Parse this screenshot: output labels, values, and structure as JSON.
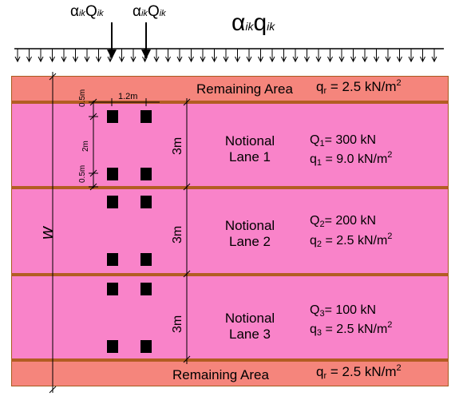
{
  "loads": {
    "axle_1": {
      "main": "α",
      "main_sub": "ik",
      "var": "Q",
      "var_sub": "ik"
    },
    "axle_2": {
      "main": "α",
      "main_sub": "ik",
      "var": "Q",
      "var_sub": "ik"
    },
    "udl": {
      "main": "α",
      "main_sub": "ik",
      "var": "q",
      "var_sub": "ik"
    }
  },
  "remaining_top": {
    "title": "Remaining Area",
    "q_sym": "q",
    "q_sub": "r",
    "q_val": "= 2.5 kN/m",
    "q_exp": "2"
  },
  "remaining_bottom": {
    "title": "Remaining Area",
    "q_sym": "q",
    "q_sub": "r",
    "q_val": "= 2.5 kN/m",
    "q_exp": "2"
  },
  "lanes": [
    {
      "line1": "Notional",
      "line2": "Lane 1",
      "Q_sym": "Q",
      "Q_sub": "1",
      "Q_val": "= 300 kN",
      "q_sym": "q",
      "q_sub": "1",
      "q_val": "= 9.0 kN/m",
      "q_exp": "2",
      "width": "3m"
    },
    {
      "line1": "Notional",
      "line2": "Lane 2",
      "Q_sym": "Q",
      "Q_sub": "2",
      "Q_val": "= 200 kN",
      "q_sym": "q",
      "q_sub": "2",
      "q_val": "= 2.5 kN/m",
      "q_exp": "2",
      "width": "3m"
    },
    {
      "line1": "Notional",
      "line2": "Lane 3",
      "Q_sym": "Q",
      "Q_sub": "3",
      "Q_val": "= 100 kN",
      "q_sym": "q",
      "q_sub": "3",
      "q_val": "= 2.5 kN/m",
      "q_exp": "2",
      "width": "3m"
    }
  ],
  "dimensions": {
    "wheel_spacing": "1.2m",
    "edge_top": "0.5m",
    "axle_spacing": "2m",
    "edge_bottom": "0.5m",
    "carriageway": "w"
  },
  "colors": {
    "remaining": "#f5857c",
    "lane": "#f983c9",
    "divider": "#b35d22",
    "wheel": "#000000"
  }
}
